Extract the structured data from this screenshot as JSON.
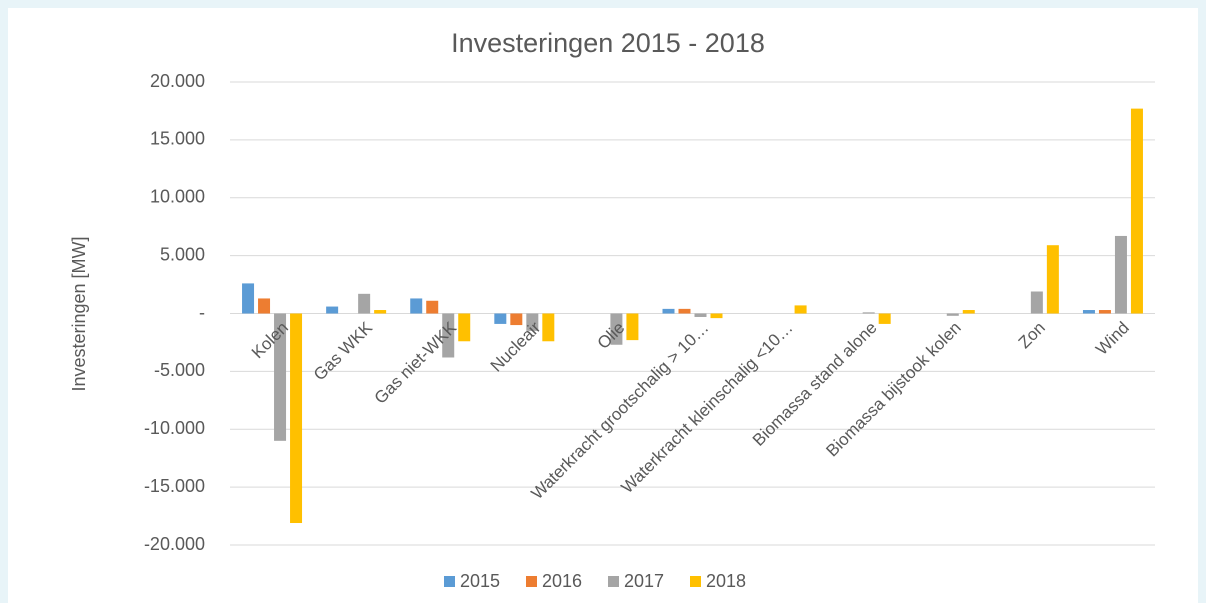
{
  "chart_data": {
    "type": "bar",
    "title": "Investeringen 2015 - 2018",
    "ylabel": "Investeringen [MW]",
    "categories": [
      "Kolen",
      "Gas WKK",
      "Gas niet-WKK",
      "Nucleair",
      "Olie",
      "Waterkracht grootschalig > 10…",
      "Waterkracht kleinschalig <10…",
      "Biomassa stand alone",
      "Biomassa bijstook kolen",
      "Zon",
      "Wind"
    ],
    "series": [
      {
        "name": "2015",
        "color": "#5b9bd5",
        "values": [
          2600,
          600,
          1300,
          -900,
          0,
          400,
          0,
          0,
          0,
          0,
          300
        ]
      },
      {
        "name": "2016",
        "color": "#ed7d31",
        "values": [
          1300,
          0,
          1100,
          -1000,
          0,
          400,
          0,
          0,
          0,
          0,
          300
        ]
      },
      {
        "name": "2017",
        "color": "#a5a5a5",
        "values": [
          -11000,
          1700,
          -3800,
          -1500,
          -2700,
          -300,
          0,
          100,
          -200,
          1900,
          6700
        ]
      },
      {
        "name": "2018",
        "color": "#ffc000",
        "values": [
          -18100,
          300,
          -2400,
          -2400,
          -2300,
          -400,
          700,
          -900,
          300,
          5900,
          17700
        ]
      }
    ],
    "ylim": [
      -20000,
      20000
    ],
    "yticks": [
      {
        "value": 20000,
        "label": "20.000"
      },
      {
        "value": 15000,
        "label": "15.000"
      },
      {
        "value": 10000,
        "label": "10.000"
      },
      {
        "value": 5000,
        "label": "5.000"
      },
      {
        "value": 0,
        "label": "-"
      },
      {
        "value": -5000,
        "label": "-5.000"
      },
      {
        "value": -10000,
        "label": "-10.000"
      },
      {
        "value": -15000,
        "label": "-15.000"
      },
      {
        "value": -20000,
        "label": "-20.000"
      }
    ],
    "grid": true,
    "legend": "bottom"
  }
}
